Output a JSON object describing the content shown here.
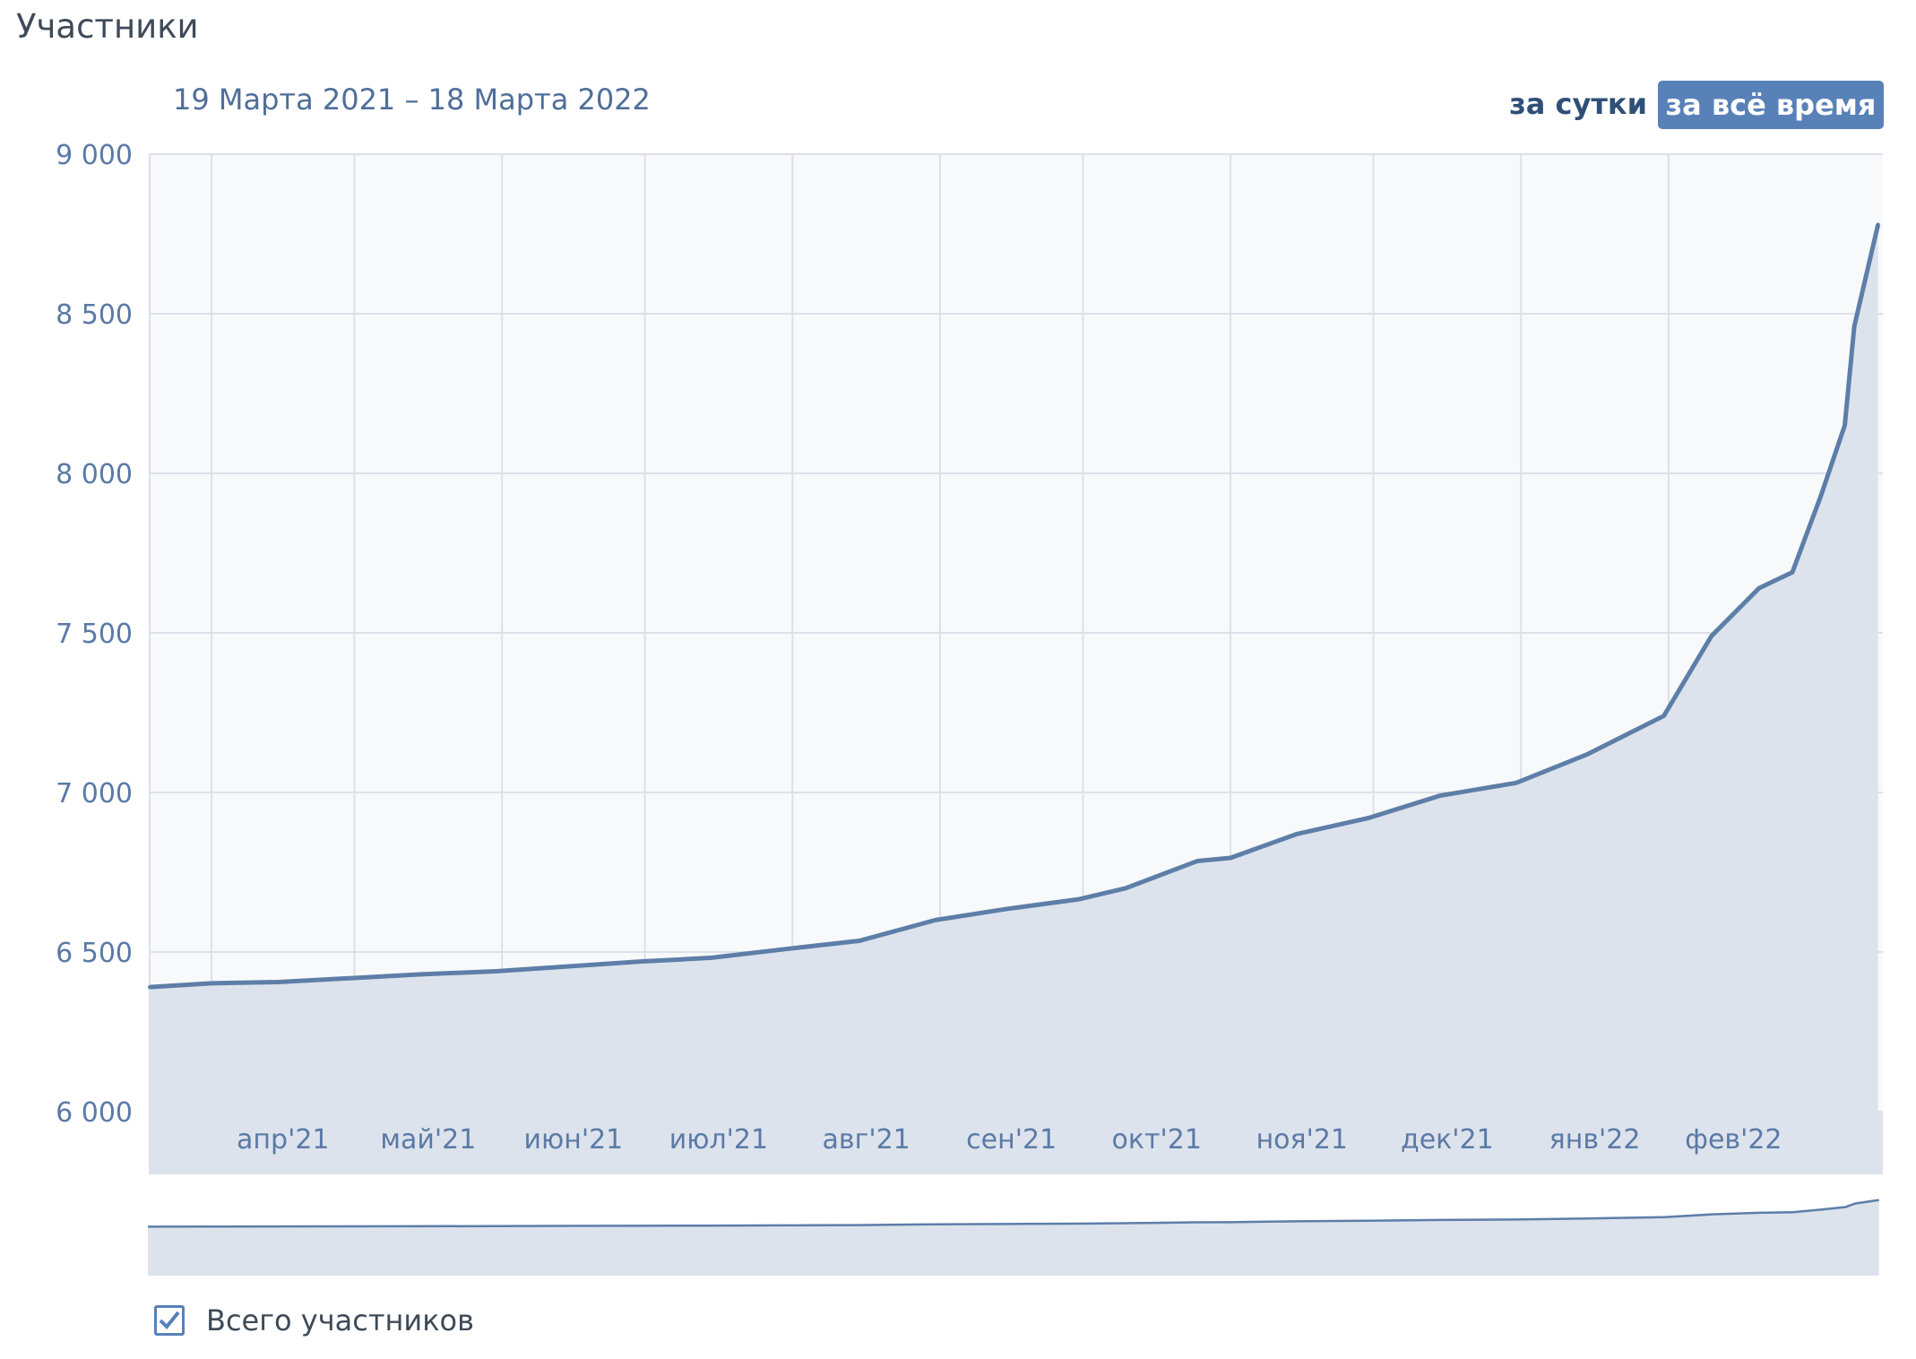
{
  "header": {
    "title": "Участники",
    "period": "19 Марта 2021 – 18 Марта 2022"
  },
  "buttons": {
    "per_day": "за сутки",
    "all_time": "за всё время"
  },
  "legend": {
    "label": "Всего участников",
    "checked": true
  },
  "colors": {
    "line": "#5d7ea8",
    "fill": "#dde3ec",
    "accent": "#5881b8",
    "axis_text": "#5a7aa6"
  },
  "chart_data": {
    "type": "area",
    "title": "",
    "xlabel": "",
    "ylabel": "",
    "ylim": [
      6000,
      9000
    ],
    "xlim": [
      "2021-03-19",
      "2022-03-18"
    ],
    "grid": true,
    "yticks": [
      "9 000",
      "8 500",
      "8 000",
      "7 500",
      "7 000",
      "6 500",
      "6 000"
    ],
    "ytick_values": [
      9000,
      8500,
      8000,
      7500,
      7000,
      6500,
      6000
    ],
    "xticks": [
      {
        "date": "2021-04-01",
        "label": "апр'21"
      },
      {
        "date": "2021-05-01",
        "label": "май'21"
      },
      {
        "date": "2021-06-01",
        "label": "июн'21"
      },
      {
        "date": "2021-07-01",
        "label": "июл'21"
      },
      {
        "date": "2021-08-01",
        "label": "авг'21"
      },
      {
        "date": "2021-09-01",
        "label": "сен'21"
      },
      {
        "date": "2021-10-01",
        "label": "окт'21"
      },
      {
        "date": "2021-11-01",
        "label": "ноя'21"
      },
      {
        "date": "2021-12-01",
        "label": "дек'21"
      },
      {
        "date": "2022-01-01",
        "label": "янв'22"
      },
      {
        "date": "2022-02-01",
        "label": "фев'22"
      }
    ],
    "series": [
      {
        "name": "Всего участников",
        "points": [
          [
            "2021-03-19",
            6390
          ],
          [
            "2021-04-01",
            6402
          ],
          [
            "2021-04-15",
            6406
          ],
          [
            "2021-04-30",
            6418
          ],
          [
            "2021-05-15",
            6430
          ],
          [
            "2021-05-31",
            6440
          ],
          [
            "2021-06-15",
            6455
          ],
          [
            "2021-06-30",
            6470
          ],
          [
            "2021-07-15",
            6482
          ],
          [
            "2021-07-31",
            6510
          ],
          [
            "2021-08-15",
            6535
          ],
          [
            "2021-08-31",
            6600
          ],
          [
            "2021-09-15",
            6635
          ],
          [
            "2021-09-30",
            6665
          ],
          [
            "2021-10-10",
            6700
          ],
          [
            "2021-10-25",
            6785
          ],
          [
            "2021-11-01",
            6795
          ],
          [
            "2021-11-15",
            6870
          ],
          [
            "2021-11-30",
            6920
          ],
          [
            "2021-12-15",
            6990
          ],
          [
            "2021-12-31",
            7030
          ],
          [
            "2022-01-15",
            7120
          ],
          [
            "2022-01-31",
            7240
          ],
          [
            "2022-02-10",
            7490
          ],
          [
            "2022-02-20",
            7640
          ],
          [
            "2022-02-27",
            7690
          ],
          [
            "2022-03-05",
            7930
          ],
          [
            "2022-03-10",
            8150
          ],
          [
            "2022-03-12",
            8460
          ],
          [
            "2022-03-17",
            8780
          ]
        ]
      }
    ]
  }
}
